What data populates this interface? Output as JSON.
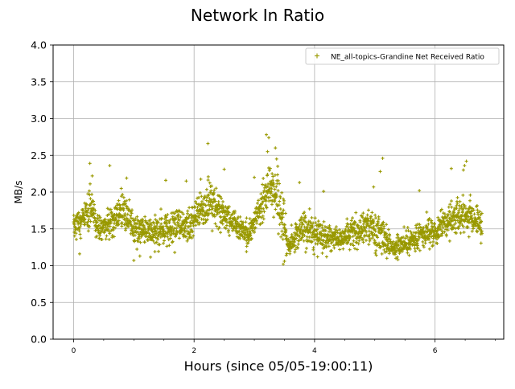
{
  "chart_data": {
    "type": "scatter",
    "title": "Network In Ratio",
    "xlabel": "Hours (since 05/05-19:00:11)",
    "ylabel": "MB/s",
    "xlim": [
      -0.34,
      7.14
    ],
    "ylim": [
      0.0,
      4.0
    ],
    "x_ticks": [
      0,
      2,
      4,
      6
    ],
    "x_tick_labels": [
      "0",
      "2",
      "4",
      "6"
    ],
    "x_minor_ticks": [
      0.5,
      1,
      1.5,
      2.5,
      3,
      3.5,
      4.5,
      5,
      5.5,
      6.5,
      7
    ],
    "y_ticks": [
      0.0,
      0.5,
      1.0,
      1.5,
      2.0,
      2.5,
      3.0,
      3.5,
      4.0
    ],
    "y_tick_labels": [
      "0.0",
      "0.5",
      "1.0",
      "1.5",
      "2.0",
      "2.5",
      "3.0",
      "3.5",
      "4.0"
    ],
    "grid": true,
    "legend_position": "top-right",
    "color": "#999900",
    "marker": "+",
    "series": [
      {
        "name": "NE_all-topics-Grandine Net Received Ratio",
        "profile": [
          [
            0.0,
            1.55,
            0.22
          ],
          [
            0.2,
            1.65,
            0.3
          ],
          [
            0.3,
            1.75,
            0.4
          ],
          [
            0.4,
            1.5,
            0.2
          ],
          [
            0.6,
            1.55,
            0.22
          ],
          [
            0.8,
            1.8,
            0.3
          ],
          [
            1.0,
            1.5,
            0.22
          ],
          [
            1.3,
            1.45,
            0.2
          ],
          [
            1.6,
            1.5,
            0.25
          ],
          [
            1.9,
            1.55,
            0.25
          ],
          [
            2.1,
            1.75,
            0.3
          ],
          [
            2.3,
            1.85,
            0.35
          ],
          [
            2.5,
            1.7,
            0.25
          ],
          [
            2.7,
            1.55,
            0.2
          ],
          [
            2.9,
            1.4,
            0.2
          ],
          [
            3.05,
            1.7,
            0.25
          ],
          [
            3.25,
            2.1,
            0.4
          ],
          [
            3.45,
            1.75,
            0.4
          ],
          [
            3.55,
            1.25,
            0.15
          ],
          [
            3.8,
            1.5,
            0.25
          ],
          [
            4.1,
            1.4,
            0.22
          ],
          [
            4.4,
            1.35,
            0.18
          ],
          [
            4.6,
            1.45,
            0.22
          ],
          [
            4.9,
            1.55,
            0.28
          ],
          [
            5.1,
            1.45,
            0.3
          ],
          [
            5.3,
            1.25,
            0.15
          ],
          [
            5.6,
            1.35,
            0.2
          ],
          [
            5.8,
            1.45,
            0.22
          ],
          [
            6.0,
            1.45,
            0.2
          ],
          [
            6.2,
            1.6,
            0.25
          ],
          [
            6.45,
            1.7,
            0.3
          ],
          [
            6.6,
            1.65,
            0.25
          ],
          [
            6.78,
            1.55,
            0.25
          ]
        ],
        "peaks": [
          [
            0.27,
            2.39
          ],
          [
            0.31,
            2.22
          ],
          [
            0.6,
            2.36
          ],
          [
            0.88,
            2.19
          ],
          [
            1.53,
            2.16
          ],
          [
            1.87,
            2.15
          ],
          [
            2.23,
            2.66
          ],
          [
            2.5,
            2.31
          ],
          [
            3.0,
            2.2
          ],
          [
            3.2,
            2.78
          ],
          [
            3.24,
            2.74
          ],
          [
            3.22,
            2.55
          ],
          [
            3.35,
            2.6
          ],
          [
            3.37,
            2.45
          ],
          [
            3.75,
            2.13
          ],
          [
            4.15,
            2.01
          ],
          [
            4.98,
            2.07
          ],
          [
            5.13,
            2.46
          ],
          [
            5.09,
            2.28
          ],
          [
            5.74,
            2.02
          ],
          [
            6.27,
            2.32
          ],
          [
            6.52,
            2.42
          ],
          [
            6.49,
            2.36
          ],
          [
            6.47,
            2.3
          ]
        ],
        "lows": [
          [
            0.1,
            1.16
          ],
          [
            1.0,
            1.07
          ],
          [
            1.1,
            1.13
          ],
          [
            3.48,
            1.02
          ],
          [
            3.5,
            1.06
          ],
          [
            4.05,
            1.12
          ],
          [
            4.2,
            1.12
          ],
          [
            5.2,
            1.1
          ],
          [
            5.35,
            1.1
          ],
          [
            5.57,
            1.14
          ],
          [
            2.87,
            1.19
          ],
          [
            1.35,
            1.19
          ]
        ],
        "count": 2400
      }
    ]
  }
}
